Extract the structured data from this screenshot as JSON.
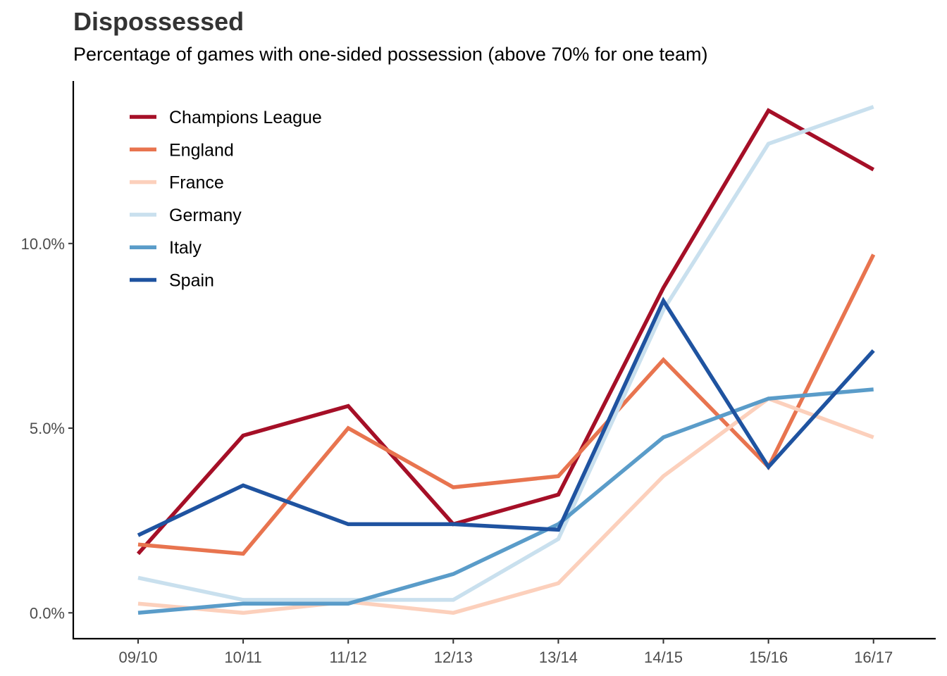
{
  "chart_data": {
    "type": "line",
    "title": "Dispossessed",
    "subtitle": "Percentage of games with one-sided possession (above 70% for one team)",
    "xlabel": "",
    "ylabel": "",
    "categories": [
      "09/10",
      "10/11",
      "11/12",
      "12/13",
      "13/14",
      "14/15",
      "15/16",
      "16/17"
    ],
    "ylim": [
      -0.7,
      14.4
    ],
    "yticks": [
      0,
      5,
      10
    ],
    "ytick_labels": [
      "0.0%",
      "5.0%",
      "10.0%"
    ],
    "grid": false,
    "legend_position": "top-left",
    "series": [
      {
        "name": "Champions League",
        "color": "#a50f27",
        "values": [
          1.6,
          4.8,
          5.6,
          2.4,
          3.2,
          8.8,
          13.6,
          12.0
        ]
      },
      {
        "name": "England",
        "color": "#e8744f",
        "values": [
          1.85,
          1.6,
          5.0,
          3.4,
          3.7,
          6.85,
          3.95,
          9.7
        ]
      },
      {
        "name": "France",
        "color": "#fcd0bc",
        "values": [
          0.25,
          0.0,
          0.3,
          0.0,
          0.8,
          3.7,
          5.8,
          4.75
        ]
      },
      {
        "name": "Germany",
        "color": "#c9e0ee",
        "values": [
          0.95,
          0.35,
          0.35,
          0.35,
          2.0,
          8.2,
          12.7,
          13.7
        ]
      },
      {
        "name": "Italy",
        "color": "#5a9cc9",
        "values": [
          0.0,
          0.25,
          0.25,
          1.05,
          2.4,
          4.75,
          5.8,
          6.05
        ]
      },
      {
        "name": "Spain",
        "color": "#1f53a0",
        "values": [
          2.1,
          3.45,
          2.4,
          2.4,
          2.25,
          8.45,
          3.95,
          7.1
        ]
      }
    ]
  }
}
